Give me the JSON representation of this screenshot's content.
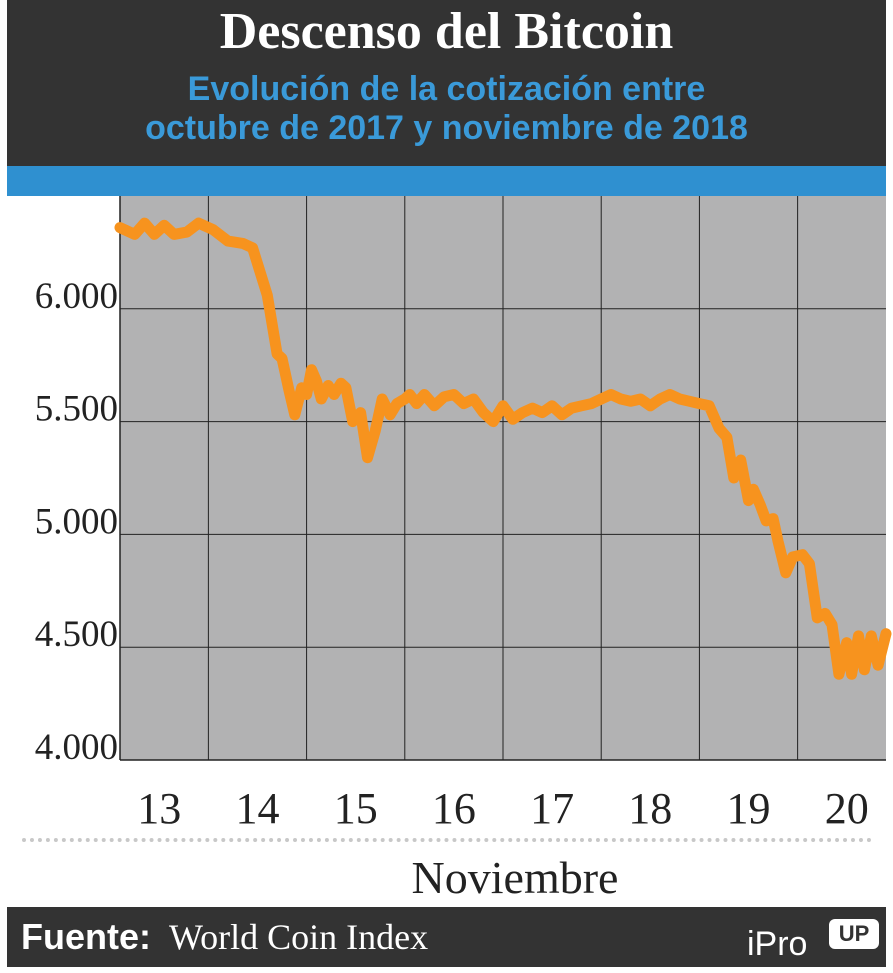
{
  "header": {
    "title": "Descenso del Bitcoin",
    "subtitle_line1": "Evolución de la cotización entre",
    "subtitle_line2": "octubre de 2017 y noviembre de 2018"
  },
  "footer": {
    "source_label": "Fuente:",
    "source_value": "World Coin Index",
    "brand_main": "iPro",
    "brand_badge": "UP"
  },
  "colors": {
    "header_bg": "#333333",
    "subtitle": "#3a9ad9",
    "band": "#2f90d0",
    "plot_bg": "#b2b2b3",
    "grid": "#222222",
    "line": "#f7931e"
  },
  "chart_data": {
    "type": "line",
    "title": "Descenso del Bitcoin",
    "xlabel": "Noviembre",
    "ylabel": "",
    "ylim": [
      4000,
      6500
    ],
    "xlim": [
      12.6,
      20.4
    ],
    "grid": true,
    "legend": "none",
    "y_ticks": [
      {
        "value": 4000,
        "label": "4.000"
      },
      {
        "value": 4500,
        "label": "4.500"
      },
      {
        "value": 5000,
        "label": "5.000"
      },
      {
        "value": 5500,
        "label": "5.500"
      },
      {
        "value": 6000,
        "label": "6.000"
      }
    ],
    "x_ticks": [
      {
        "value": 13,
        "label": "13"
      },
      {
        "value": 14,
        "label": "14"
      },
      {
        "value": 15,
        "label": "15"
      },
      {
        "value": 16,
        "label": "16"
      },
      {
        "value": 17,
        "label": "17"
      },
      {
        "value": 18,
        "label": "18"
      },
      {
        "value": 19,
        "label": "19"
      },
      {
        "value": 20,
        "label": "20"
      }
    ],
    "series": [
      {
        "x": [
          12.6,
          12.75,
          12.85,
          12.95,
          13.05,
          13.15,
          13.28,
          13.4,
          13.55,
          13.7,
          13.85,
          13.95,
          14.1,
          14.2,
          14.25,
          14.28,
          14.32,
          14.38,
          14.45,
          14.5,
          14.55,
          14.6,
          14.65,
          14.72,
          14.78,
          14.85,
          14.9,
          14.97,
          15.05,
          15.12,
          15.2,
          15.27,
          15.35,
          15.42,
          15.5,
          15.55,
          15.62,
          15.7,
          15.8,
          15.9,
          16.0,
          16.1,
          16.2,
          16.3,
          16.4,
          16.5,
          16.6,
          16.7,
          16.8,
          16.9,
          17.0,
          17.1,
          17.2,
          17.3,
          17.4,
          17.5,
          17.6,
          17.7,
          17.8,
          17.9,
          18.0,
          18.1,
          18.2,
          18.3,
          18.4,
          18.5,
          18.6,
          18.7,
          18.78,
          18.85,
          18.92,
          19.0,
          19.05,
          19.12,
          19.18,
          19.25,
          19.3,
          19.38,
          19.45,
          19.55,
          19.62,
          19.7,
          19.78,
          19.85,
          19.92,
          20.0,
          20.05,
          20.12,
          20.18,
          20.25,
          20.32,
          20.4
        ],
        "values": [
          6360,
          6330,
          6380,
          6330,
          6370,
          6330,
          6340,
          6380,
          6350,
          6300,
          6290,
          6270,
          6060,
          5800,
          5780,
          5720,
          5640,
          5530,
          5650,
          5620,
          5730,
          5680,
          5600,
          5660,
          5620,
          5670,
          5650,
          5500,
          5540,
          5340,
          5460,
          5600,
          5530,
          5580,
          5600,
          5620,
          5580,
          5620,
          5570,
          5610,
          5620,
          5580,
          5600,
          5540,
          5500,
          5570,
          5510,
          5540,
          5560,
          5540,
          5570,
          5530,
          5560,
          5570,
          5580,
          5600,
          5620,
          5600,
          5590,
          5600,
          5570,
          5600,
          5620,
          5600,
          5590,
          5580,
          5570,
          5470,
          5430,
          5250,
          5330,
          5150,
          5200,
          5130,
          5060,
          5070,
          4970,
          4830,
          4900,
          4910,
          4870,
          4630,
          4650,
          4600,
          4380,
          4520,
          4380,
          4550,
          4400,
          4550,
          4420,
          4560
        ]
      }
    ]
  }
}
